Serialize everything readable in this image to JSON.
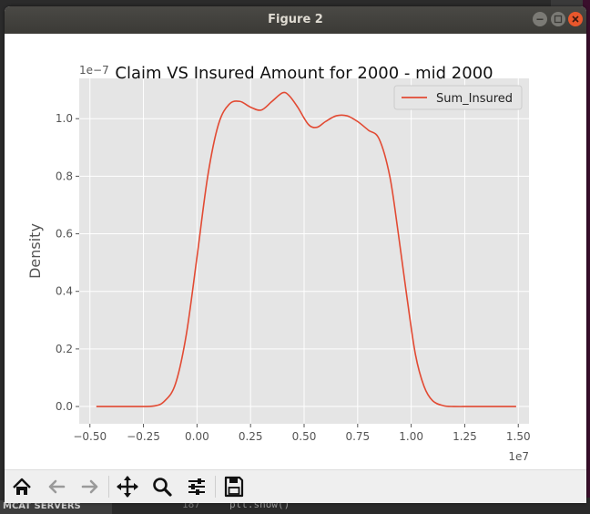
{
  "window": {
    "title": "Figure 2"
  },
  "background": {
    "terminal_left_label": "MCAT SERVERS",
    "terminal_line_number": "187",
    "terminal_code": "plt.show()"
  },
  "toolbar": {
    "tools": [
      "home-icon",
      "back-icon",
      "forward-icon",
      "pan-icon",
      "zoom-icon",
      "configure-subplots-icon",
      "save-icon"
    ]
  },
  "colors": {
    "line": "#e24a33",
    "axes_bg": "#e5e5e5",
    "grid": "#ffffff"
  },
  "chart_data": {
    "type": "line",
    "title": "Claim VS Insured Amount for 2000 -  mid 2000",
    "xlabel": "",
    "ylabel": "Density",
    "x_offset_label": "1e7",
    "y_offset_label": "1e−7",
    "xlim": [
      -0.55,
      1.55
    ],
    "ylim": [
      -0.06,
      1.14
    ],
    "xticks": [
      -0.5,
      -0.25,
      0.0,
      0.25,
      0.5,
      0.75,
      1.0,
      1.25,
      1.5
    ],
    "xtick_labels": [
      "−0.50",
      "−0.25",
      "0.00",
      "0.25",
      "0.50",
      "0.75",
      "1.00",
      "1.25",
      "1.50"
    ],
    "yticks": [
      0.0,
      0.2,
      0.4,
      0.6,
      0.8,
      1.0
    ],
    "ytick_labels": [
      "0.0",
      "0.2",
      "0.4",
      "0.6",
      "0.8",
      "1.0"
    ],
    "grid": true,
    "legend_position": "top-right",
    "series": [
      {
        "name": "Sum_Insured",
        "x": [
          -0.47,
          -0.3,
          -0.2,
          -0.15,
          -0.1,
          -0.05,
          0.0,
          0.05,
          0.1,
          0.15,
          0.2,
          0.25,
          0.3,
          0.35,
          0.4,
          0.43,
          0.47,
          0.52,
          0.56,
          0.6,
          0.65,
          0.7,
          0.75,
          0.8,
          0.85,
          0.9,
          0.94,
          0.98,
          1.02,
          1.06,
          1.1,
          1.15,
          1.2,
          1.3,
          1.4,
          1.49
        ],
        "y": [
          0.0,
          0.0,
          0.002,
          0.02,
          0.08,
          0.25,
          0.52,
          0.8,
          0.98,
          1.05,
          1.06,
          1.04,
          1.03,
          1.06,
          1.09,
          1.08,
          1.04,
          0.98,
          0.97,
          0.99,
          1.01,
          1.01,
          0.99,
          0.96,
          0.93,
          0.8,
          0.6,
          0.38,
          0.18,
          0.07,
          0.02,
          0.003,
          0.0,
          0.0,
          0.0,
          0.0
        ]
      }
    ]
  }
}
